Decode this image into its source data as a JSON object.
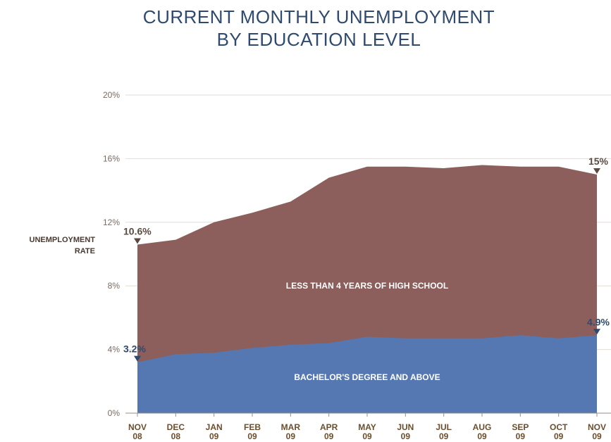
{
  "title_line1": "CURRENT MONTHLY UNEMPLOYMENT",
  "title_line2": "BY EDUCATION LEVEL",
  "ylabel_line1": "UNEMPLOYMENT",
  "ylabel_line2": "RATE",
  "colors": {
    "less_hs": "#8c5f5c",
    "bachelors": "#5578b3",
    "grid": "#e2ddd5",
    "axis": "#9a8f86"
  },
  "chart_data": {
    "type": "area",
    "title": "CURRENT MONTHLY UNEMPLOYMENT BY EDUCATION LEVEL",
    "ylabel": "UNEMPLOYMENT RATE",
    "xlabel": "",
    "ylim": [
      0,
      20
    ],
    "yticks": [
      0,
      4,
      8,
      12,
      16,
      20
    ],
    "ytick_labels": [
      "0%",
      "4%",
      "8%",
      "12%",
      "16%",
      "20%"
    ],
    "grid": true,
    "categories": [
      [
        "NOV",
        "08"
      ],
      [
        "DEC",
        "08"
      ],
      [
        "JAN",
        "09"
      ],
      [
        "FEB",
        "09"
      ],
      [
        "MAR",
        "09"
      ],
      [
        "APR",
        "09"
      ],
      [
        "MAY",
        "09"
      ],
      [
        "JUN",
        "09"
      ],
      [
        "JUL",
        "09"
      ],
      [
        "AUG",
        "09"
      ],
      [
        "SEP",
        "09"
      ],
      [
        "OCT",
        "09"
      ],
      [
        "NOV",
        "09"
      ]
    ],
    "series": [
      {
        "name": "LESS THAN 4 YEARS OF HIGH SCHOOL",
        "values": [
          10.6,
          10.9,
          12.0,
          12.6,
          13.3,
          14.8,
          15.5,
          15.5,
          15.4,
          15.6,
          15.5,
          15.5,
          15.0
        ]
      },
      {
        "name": "BACHELOR'S DEGREE AND ABOVE",
        "values": [
          3.2,
          3.7,
          3.8,
          4.1,
          4.3,
          4.4,
          4.8,
          4.7,
          4.7,
          4.7,
          4.9,
          4.7,
          4.9
        ]
      }
    ],
    "annotations": [
      {
        "text": "10.6%",
        "series": 0,
        "index": 0
      },
      {
        "text": "15%",
        "series": 0,
        "index": 12
      },
      {
        "text": "3.2%",
        "series": 1,
        "index": 0
      },
      {
        "text": "4.9%",
        "series": 1,
        "index": 12
      }
    ]
  }
}
